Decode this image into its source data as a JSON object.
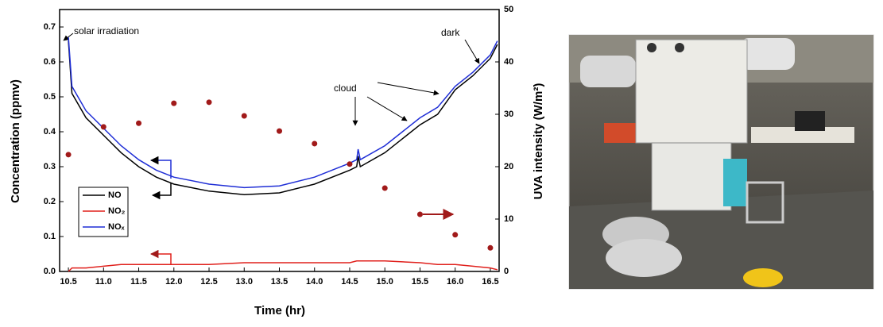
{
  "chart_data": {
    "type": "line",
    "x_label": "Time (hr)",
    "y_label": "Concentration (ppmv)",
    "y2_label": "UVA intensity (W/m²)",
    "annotations": [
      "solar irradiation",
      "cloud",
      "dark"
    ],
    "xlim": [
      10.375,
      16.625
    ],
    "xticks": [
      10.5,
      {
        "value": 11,
        "label": "11.0"
      },
      11.5,
      {
        "value": 12,
        "label": "12.0"
      },
      12.5,
      {
        "value": 13,
        "label": "13.0"
      },
      13.5,
      {
        "value": 14,
        "label": "14.0"
      },
      14.5,
      {
        "value": 15,
        "label": "15.0"
      },
      15.5,
      {
        "value": 16,
        "label": "16.0"
      },
      16.5
    ],
    "ylim": [
      0,
      0.75
    ],
    "yticks": [
      {
        "value": 0,
        "label": "0.0"
      },
      0.1,
      0.2,
      0.3,
      0.4,
      0.5,
      0.6,
      0.7
    ],
    "y2lim": [
      0,
      50
    ],
    "y2ticks": [
      0,
      10,
      20,
      30,
      40,
      50
    ],
    "x": [
      10.5,
      10.55,
      10.75,
      11.0,
      11.25,
      11.5,
      11.75,
      12.0,
      12.5,
      13.0,
      13.5,
      14.0,
      14.5,
      14.6,
      14.62,
      14.65,
      15.0,
      15.5,
      15.75,
      16.0,
      16.25,
      16.5,
      16.6
    ],
    "series": [
      {
        "name": "NO",
        "color": "#000000",
        "values": [
          0.66,
          0.51,
          0.44,
          0.39,
          0.34,
          0.3,
          0.27,
          0.25,
          0.23,
          0.22,
          0.225,
          0.25,
          0.29,
          0.3,
          0.33,
          0.3,
          0.34,
          0.42,
          0.45,
          0.52,
          0.56,
          0.61,
          0.65
        ]
      },
      {
        "name": "NO₂",
        "color": "#e0201c",
        "values": [
          0.0,
          0.01,
          0.01,
          0.015,
          0.02,
          0.02,
          0.02,
          0.02,
          0.02,
          0.025,
          0.025,
          0.025,
          0.025,
          0.03,
          0.03,
          0.03,
          0.03,
          0.025,
          0.02,
          0.02,
          0.015,
          0.01,
          0.005
        ]
      },
      {
        "name": "NOₓ",
        "color": "#1f2ed6",
        "values": [
          0.67,
          0.53,
          0.46,
          0.41,
          0.36,
          0.32,
          0.29,
          0.27,
          0.25,
          0.24,
          0.245,
          0.27,
          0.31,
          0.32,
          0.35,
          0.32,
          0.36,
          0.44,
          0.47,
          0.53,
          0.57,
          0.62,
          0.66
        ]
      },
      {
        "color": "#a11a1a",
        "axis": "y2",
        "marker": "dot",
        "x": [
          10.5,
          11.0,
          11.5,
          12.0,
          12.5,
          13.0,
          13.5,
          14.0,
          14.5,
          15.0,
          15.5,
          16.0,
          16.5
        ],
        "values": [
          22.3,
          27.6,
          28.3,
          32.1,
          32.3,
          29.7,
          26.8,
          24.4,
          20.5,
          15.9,
          10.9,
          7.0,
          4.5
        ]
      }
    ]
  }
}
